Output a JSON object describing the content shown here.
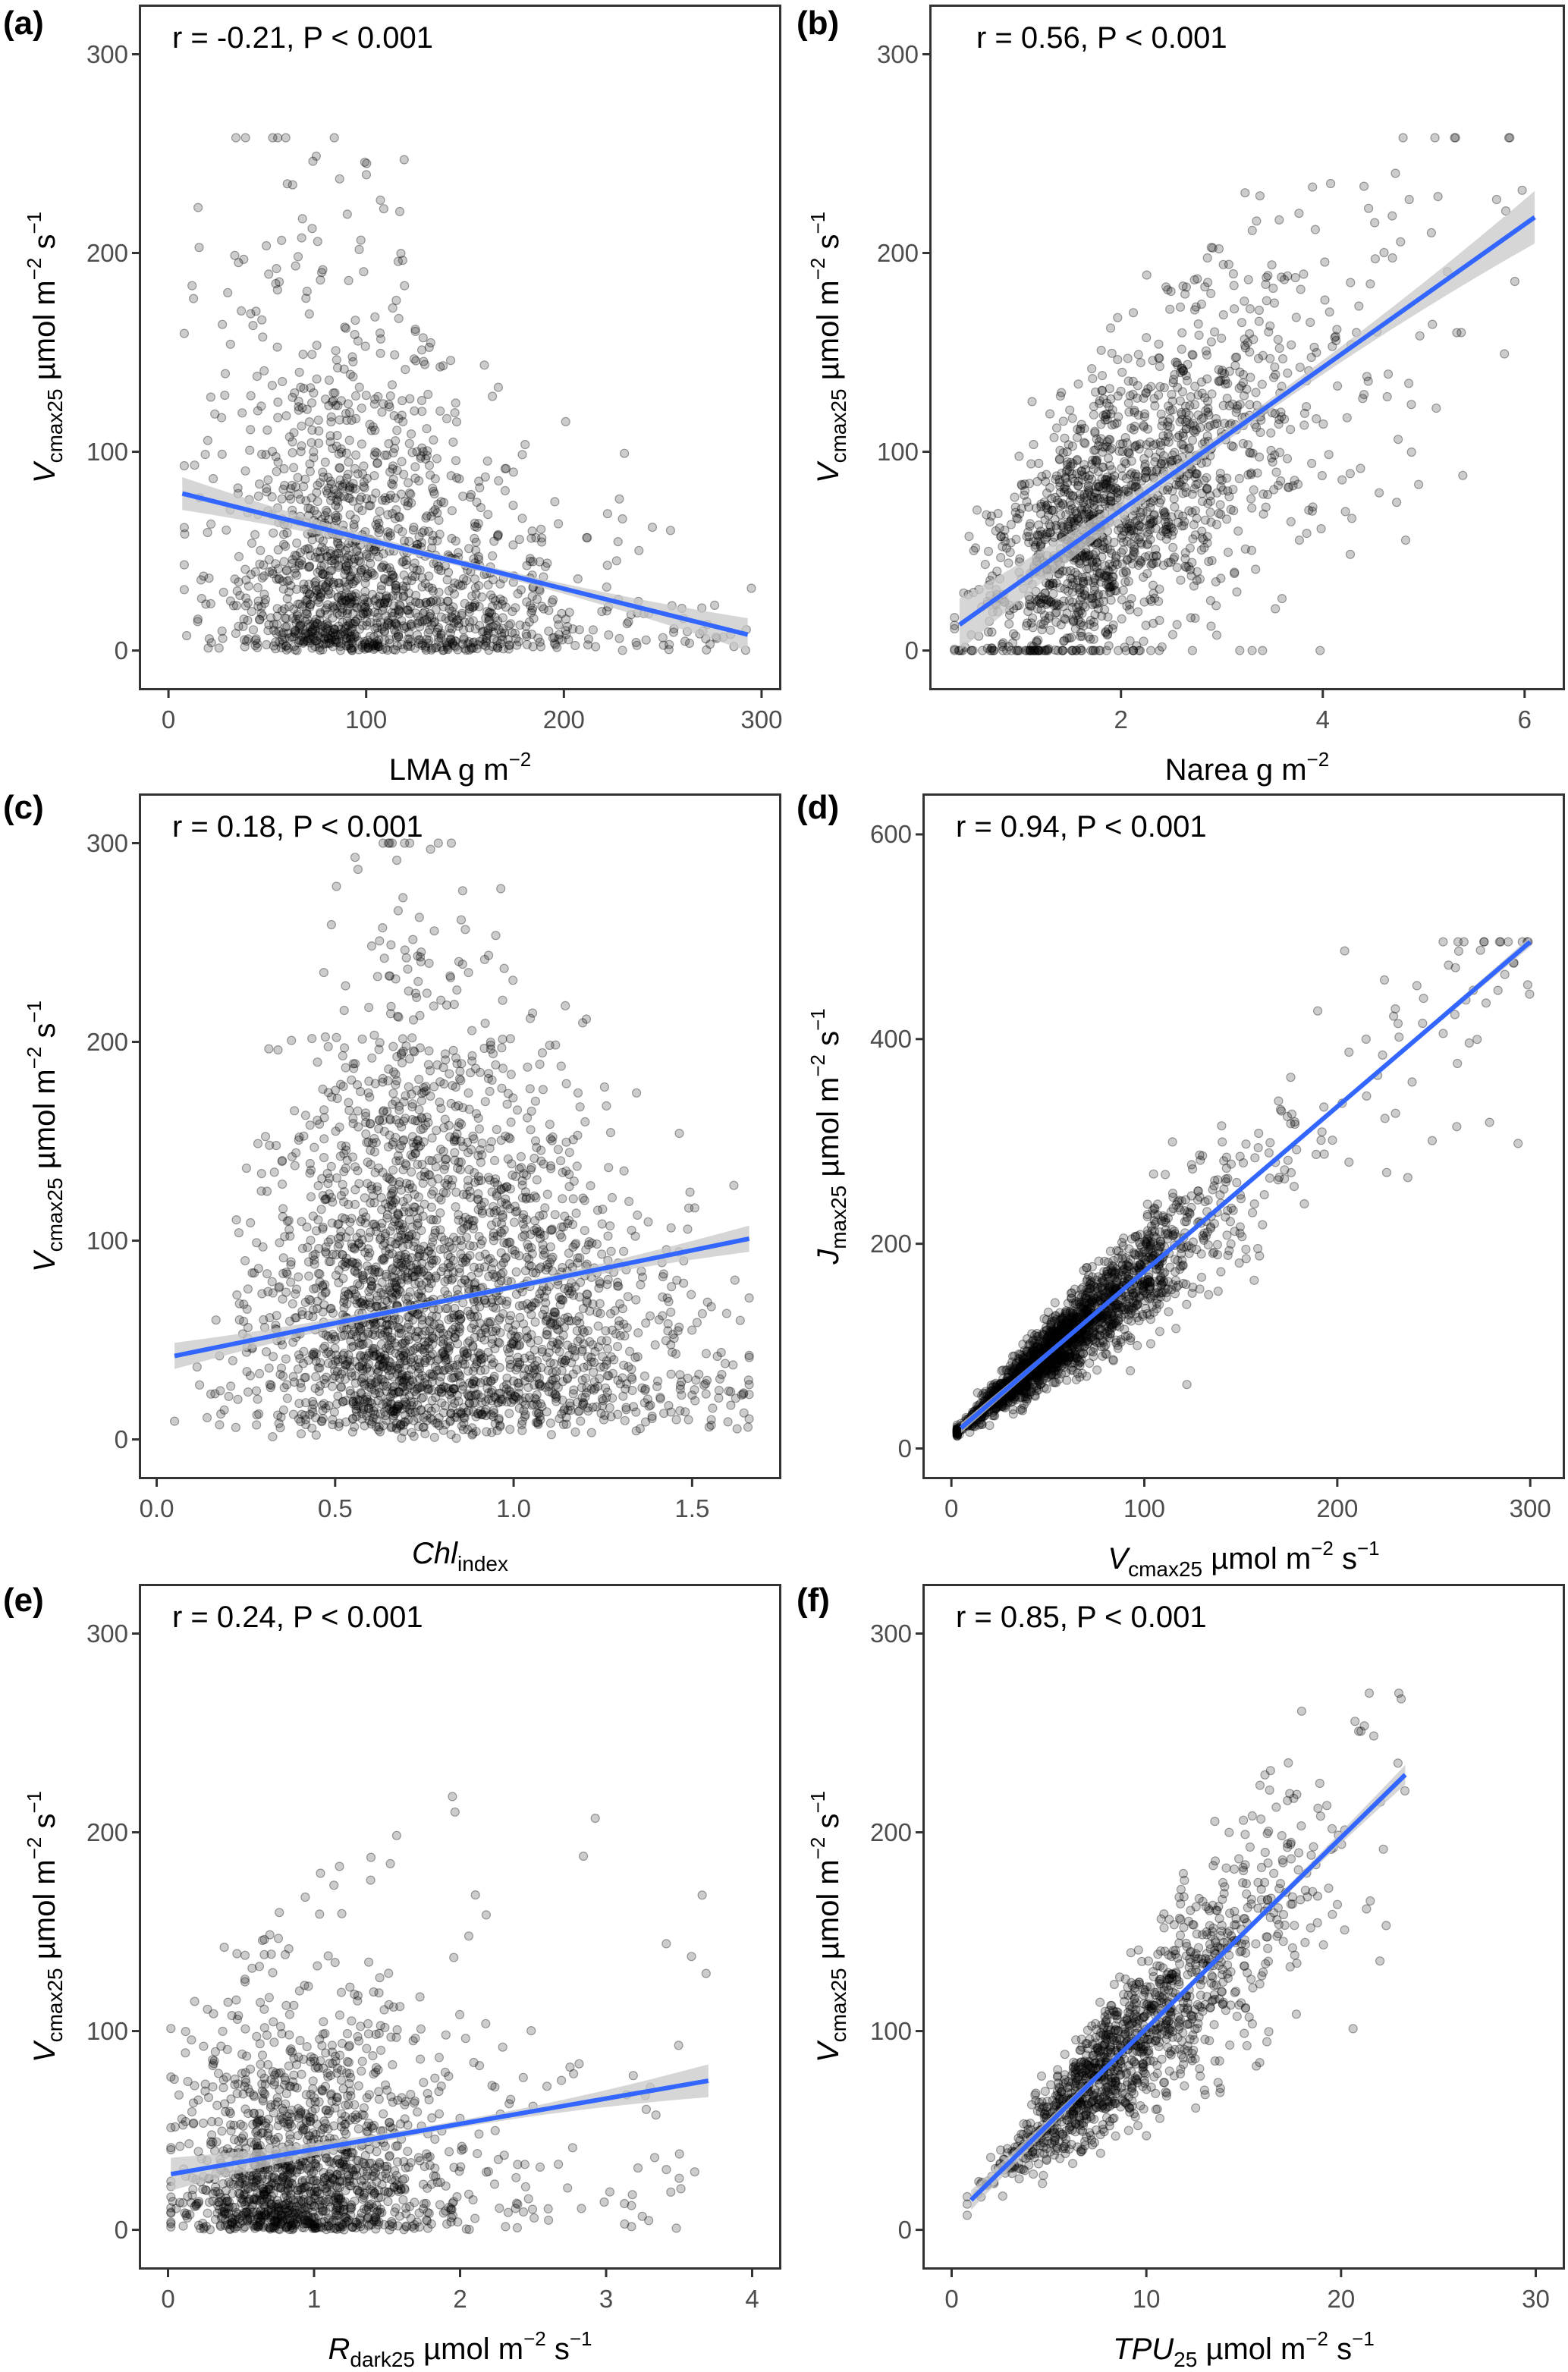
{
  "figure": {
    "panels": [
      "a",
      "b",
      "c",
      "d",
      "e",
      "f"
    ]
  },
  "chart_data": [
    {
      "id": "a",
      "type": "scatter",
      "panel_label": "(a)",
      "annotation": "r = -0.21, P < 0.001",
      "xlabel": {
        "main": "LMA g m",
        "sup": "−2"
      },
      "ylabel": {
        "main": "V",
        "sub": "cmax25",
        "unit": " µmol m",
        "sup1": "−2",
        "s": " s",
        "sup2": "−1"
      },
      "xlim": [
        -15,
        310
      ],
      "ylim": [
        -20,
        325
      ],
      "xticks": [
        0,
        100,
        200,
        300
      ],
      "yticks": [
        0,
        100,
        200,
        300
      ],
      "fit": {
        "x": [
          7,
          293
        ],
        "y": [
          79,
          8
        ],
        "ci": 5
      },
      "cloud": {
        "n": 1600,
        "xcenter": 95,
        "xspread": 40,
        "xmin": 8,
        "xmax": 295,
        "yscale": 55,
        "ymax": 258,
        "mode": "neg"
      },
      "r": -0.21,
      "p": "< 0.001"
    },
    {
      "id": "b",
      "type": "scatter",
      "panel_label": "(b)",
      "annotation": "r = 0.56, P < 0.001",
      "xlabel": {
        "main": "Narea g m",
        "sup": "−2"
      },
      "ylabel": {
        "main": "V",
        "sub": "cmax25",
        "unit": " µmol m",
        "sup1": "−2",
        "s": " s",
        "sup2": "−1"
      },
      "xlim": [
        0.1,
        6.4
      ],
      "ylim": [
        -20,
        325
      ],
      "xticks": [
        2,
        4,
        6
      ],
      "yticks": [
        0,
        100,
        200,
        300
      ],
      "fit": {
        "x": [
          0.4,
          6.1
        ],
        "y": [
          13,
          218
        ],
        "ci": 8
      },
      "cloud": {
        "n": 1600,
        "xcenter": 1.9,
        "xspread": 0.75,
        "xmin": 0.35,
        "xmax": 6.1,
        "slope": 36,
        "intercept": -1,
        "resid": 32,
        "ymax": 258,
        "mode": "lin"
      },
      "r": 0.56,
      "p": "< 0.001"
    },
    {
      "id": "c",
      "type": "scatter",
      "panel_label": "(c)",
      "annotation": "r = 0.18, P < 0.001",
      "xlabel": {
        "main": "Chl",
        "sub": "index",
        "italic_main": true
      },
      "ylabel": {
        "main": "V",
        "sub": "cmax25",
        "unit": " µmol m",
        "sup1": "−2",
        "s": " s",
        "sup2": "−1"
      },
      "xlim": [
        -0.05,
        1.75
      ],
      "ylim": [
        -20,
        325
      ],
      "xticks": [
        0.0,
        0.5,
        1.0,
        1.5
      ],
      "xtick_labels": [
        "0.0",
        "0.5",
        "1.0",
        "1.5"
      ],
      "yticks": [
        0,
        100,
        200,
        300
      ],
      "fit": {
        "x": [
          0.05,
          1.66
        ],
        "y": [
          42,
          101
        ],
        "ci": 4
      },
      "cloud": {
        "n": 2600,
        "xcenter": 0.75,
        "xspread": 0.27,
        "xmin": 0.05,
        "xmax": 1.66,
        "yscale": 70,
        "ymax": 300,
        "mode": "tri"
      },
      "r": 0.18,
      "p": "< 0.001"
    },
    {
      "id": "d",
      "type": "scatter",
      "panel_label": "(d)",
      "annotation": "r = 0.94, P < 0.001",
      "xlabel": {
        "main": "V",
        "sub": "cmax25",
        "unit": " µmol m",
        "sup1": "−2",
        "s": " s",
        "sup2": "−1",
        "italic_main": true
      },
      "ylabel": {
        "main": "J",
        "sub": "max25",
        "unit": " µmol m",
        "sup1": "−2",
        "s": " s",
        "sup2": "−1"
      },
      "xlim": [
        -15,
        318
      ],
      "ylim": [
        -30,
        640
      ],
      "xticks": [
        0,
        100,
        200,
        300
      ],
      "yticks": [
        0,
        200,
        400,
        600
      ],
      "fit": {
        "x": [
          5,
          300
        ],
        "y": [
          20,
          495
        ],
        "ci": 3
      },
      "cloud": {
        "n": 2200,
        "xcenter": 55,
        "xspread": 30,
        "xmin": 3,
        "xmax": 300,
        "slope": 1.61,
        "intercept": 12,
        "resid": 0.16,
        "ymax": 495,
        "mode": "prop"
      },
      "r": 0.94,
      "p": "< 0.001"
    },
    {
      "id": "e",
      "type": "scatter",
      "panel_label": "(e)",
      "annotation": "r = 0.24, P < 0.001",
      "xlabel": {
        "main": "R",
        "sub": "dark25",
        "unit": " µmol m",
        "sup1": "−2",
        "s": " s",
        "sup2": "−1",
        "italic_main": true
      },
      "ylabel": {
        "main": "V",
        "sub": "cmax25",
        "unit": " µmol m",
        "sup1": "−2",
        "s": " s",
        "sup2": "−1"
      },
      "xlim": [
        -0.2,
        4.2
      ],
      "ylim": [
        -20,
        325
      ],
      "xticks": [
        0,
        1,
        2,
        3,
        4
      ],
      "yticks": [
        0,
        100,
        200,
        300
      ],
      "fit": {
        "x": [
          0.02,
          3.7
        ],
        "y": [
          28,
          75
        ],
        "ci": 5
      },
      "cloud": {
        "n": 1500,
        "xcenter": 0.85,
        "xspread": 0.45,
        "xmin": 0.02,
        "xmax": 3.7,
        "yscale": 35,
        "ymax": 218,
        "mode": "neg"
      },
      "r": 0.24,
      "p": "< 0.001"
    },
    {
      "id": "f",
      "type": "scatter",
      "panel_label": "(f)",
      "annotation": "r = 0.85, P < 0.001",
      "xlabel": {
        "main": "TPU",
        "sub": "25",
        "unit": " µmol m",
        "sup1": "−2",
        "s": " s",
        "sup2": "−1",
        "italic_main": true
      },
      "ylabel": {
        "main": "V",
        "sub": "cmax25",
        "unit": " µmol m",
        "sup1": "−2",
        "s": " s",
        "sup2": "−1"
      },
      "xlim": [
        -1.5,
        31.5
      ],
      "ylim": [
        -20,
        325
      ],
      "xticks": [
        0,
        10,
        20,
        30
      ],
      "yticks": [
        0,
        100,
        200,
        300
      ],
      "fit": {
        "x": [
          1.0,
          23.3
        ],
        "y": [
          15,
          229
        ],
        "ci": 3
      },
      "cloud": {
        "n": 1300,
        "xcenter": 8.5,
        "xspread": 3.7,
        "xmin": 0.8,
        "xmax": 23.3,
        "slope": 9.5,
        "intercept": 6,
        "resid": 0.2,
        "ymax": 270,
        "mode": "prop"
      },
      "r": 0.85,
      "p": "< 0.001"
    }
  ],
  "colors": {
    "fit_line": "#3366FF",
    "ci_band": "#c8c8c8",
    "points_fill": "#000000",
    "frame": "#333333",
    "tick_label": "#4d4d4d"
  }
}
